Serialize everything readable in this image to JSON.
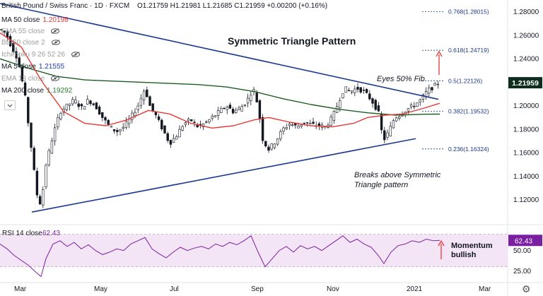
{
  "header": {
    "symbol": "British Pound / Swiss Franc · 1D · FXCM",
    "ohlc": "O1.21759 H1.21981 L1.21685 C1.21959 +0.00200 (+0.16%)"
  },
  "indicators": [
    {
      "label": "MA 50 close",
      "value": "1.20198",
      "color": "#e53935",
      "value_color": "#e53935"
    },
    {
      "label": "EMA 55 close",
      "value": "",
      "color": "#9e9e9e",
      "value_color": "#9e9e9e"
    },
    {
      "label": "BB 50 close 2",
      "value": "",
      "color": "#9e9e9e",
      "value_color": "#9e9e9e"
    },
    {
      "label": "Ichimoku 9 26 52 26",
      "value": "",
      "color": "#9e9e9e",
      "value_color": "#9e9e9e"
    },
    {
      "label": "MA 5 close",
      "value": "1.21555",
      "color": "#131722",
      "value_color": "#1e40af"
    },
    {
      "label": "EMA 13 close",
      "value": "",
      "color": "#9e9e9e",
      "value_color": "#9e9e9e"
    },
    {
      "label": "MA 200 close",
      "value": "1.19292",
      "color": "#131722",
      "value_color": "#2e7d32"
    }
  ],
  "annotations": {
    "title": "Symmetric Triangle Pattern",
    "fib_note": "Eyes 50% Fib",
    "breakout_line1": "Breaks above Symmetric",
    "breakout_line2": "Triangle pattern",
    "momentum_line1": "Momentum",
    "momentum_line2": "bullish"
  },
  "colors": {
    "candle_up": "#26a69a",
    "candle_down": "#ef5350",
    "candle_body": "#131722",
    "trendline": "#1a3a8f",
    "ma50": "#e53935",
    "ma200": "#1b5e20",
    "fib": "#1e3a8a",
    "arrow": "#e53935",
    "rsi_line": "#7b1fa2",
    "rsi_band": "#f3e5f5",
    "last_price_bg": "#0d2d1f"
  },
  "chart_data": {
    "type": "candlestick",
    "symbol": "GBP/CHF",
    "timeframe": "1D",
    "ylim": [
      1.1,
      1.29
    ],
    "y_ticks": [
      1.28,
      1.26,
      1.24,
      1.22,
      1.2,
      1.18,
      1.16,
      1.14,
      1.12
    ],
    "y_tick_labels": [
      "1.28000",
      "1.26000",
      "1.24000",
      "1.22000",
      "1.20000",
      "1.18000",
      "1.16000",
      "1.14000",
      "1.12000"
    ],
    "x_labels": [
      "Mar",
      "May",
      "Jul",
      "Sep",
      "Nov",
      "2021",
      "Mar"
    ],
    "last_price": "1.21959",
    "price_path": [
      [
        0,
        1.265
      ],
      [
        8,
        1.262
      ],
      [
        15,
        1.252
      ],
      [
        25,
        1.24
      ],
      [
        35,
        1.21
      ],
      [
        45,
        1.16
      ],
      [
        52,
        1.125
      ],
      [
        58,
        1.115
      ],
      [
        65,
        1.15
      ],
      [
        75,
        1.175
      ],
      [
        85,
        1.195
      ],
      [
        95,
        1.2
      ],
      [
        105,
        1.205
      ],
      [
        115,
        1.198
      ],
      [
        125,
        1.205
      ],
      [
        135,
        1.2
      ],
      [
        145,
        1.19
      ],
      [
        155,
        1.182
      ],
      [
        165,
        1.178
      ],
      [
        175,
        1.182
      ],
      [
        185,
        1.19
      ],
      [
        195,
        1.2
      ],
      [
        205,
        1.215
      ],
      [
        212,
        1.2
      ],
      [
        220,
        1.192
      ],
      [
        230,
        1.18
      ],
      [
        240,
        1.168
      ],
      [
        250,
        1.175
      ],
      [
        260,
        1.185
      ],
      [
        270,
        1.188
      ],
      [
        280,
        1.182
      ],
      [
        290,
        1.185
      ],
      [
        300,
        1.19
      ],
      [
        310,
        1.195
      ],
      [
        320,
        1.2
      ],
      [
        330,
        1.195
      ],
      [
        340,
        1.198
      ],
      [
        350,
        1.205
      ],
      [
        358,
        1.215
      ],
      [
        365,
        1.2
      ],
      [
        372,
        1.17
      ],
      [
        380,
        1.163
      ],
      [
        390,
        1.17
      ],
      [
        400,
        1.18
      ],
      [
        410,
        1.185
      ],
      [
        420,
        1.182
      ],
      [
        430,
        1.186
      ],
      [
        440,
        1.184
      ],
      [
        450,
        1.183
      ],
      [
        460,
        1.182
      ],
      [
        470,
        1.19
      ],
      [
        480,
        1.205
      ],
      [
        487,
        1.215
      ],
      [
        495,
        1.212
      ],
      [
        505,
        1.215
      ],
      [
        515,
        1.212
      ],
      [
        525,
        1.205
      ],
      [
        535,
        1.195
      ],
      [
        542,
        1.17
      ],
      [
        550,
        1.178
      ],
      [
        558,
        1.19
      ],
      [
        565,
        1.192
      ],
      [
        575,
        1.197
      ],
      [
        585,
        1.2
      ],
      [
        595,
        1.205
      ],
      [
        605,
        1.213
      ],
      [
        615,
        1.217
      ],
      [
        620,
        1.21959
      ]
    ],
    "upper_trendline": [
      [
        0,
        1.287
      ],
      [
        620,
        1.2055
      ]
    ],
    "lower_trendline": [
      [
        45,
        1.1095
      ],
      [
        588,
        1.172
      ]
    ],
    "ma50": [
      [
        0,
        1.262
      ],
      [
        30,
        1.25
      ],
      [
        60,
        1.22
      ],
      [
        90,
        1.195
      ],
      [
        120,
        1.185
      ],
      [
        150,
        1.183
      ],
      [
        180,
        1.188
      ],
      [
        210,
        1.196
      ],
      [
        240,
        1.193
      ],
      [
        270,
        1.185
      ],
      [
        300,
        1.181
      ],
      [
        330,
        1.183
      ],
      [
        360,
        1.188
      ],
      [
        380,
        1.19
      ],
      [
        410,
        1.186
      ],
      [
        440,
        1.183
      ],
      [
        470,
        1.182
      ],
      [
        500,
        1.185
      ],
      [
        520,
        1.19
      ],
      [
        545,
        1.192
      ],
      [
        570,
        1.193
      ],
      [
        600,
        1.198
      ],
      [
        622,
        1.2021
      ]
    ],
    "ma200": [
      [
        0,
        1.24
      ],
      [
        40,
        1.232
      ],
      [
        80,
        1.225
      ],
      [
        120,
        1.222
      ],
      [
        160,
        1.221
      ],
      [
        200,
        1.22
      ],
      [
        240,
        1.219
      ],
      [
        280,
        1.218
      ],
      [
        320,
        1.216
      ],
      [
        360,
        1.212
      ],
      [
        400,
        1.206
      ],
      [
        440,
        1.201
      ],
      [
        480,
        1.197
      ],
      [
        520,
        1.194
      ],
      [
        560,
        1.192
      ],
      [
        600,
        1.1928
      ],
      [
        622,
        1.1929
      ]
    ],
    "fib_levels": [
      {
        "label": "0.768(1.28015)",
        "value": 1.28015
      },
      {
        "label": "0.618(1.24719)",
        "value": 1.24719
      },
      {
        "label": "0.5(1.22126)",
        "value": 1.22126
      },
      {
        "label": "0.382(1.19532)",
        "value": 1.19532
      },
      {
        "label": "0.236(1.16324)",
        "value": 1.16324
      }
    ],
    "rsi": {
      "label": "RSI 14 close",
      "value": "62.43",
      "ylim": [
        15,
        80
      ],
      "band": [
        30,
        70
      ],
      "y_tick_labels": [
        "50.00",
        "25.00"
      ],
      "y_ticks": [
        50,
        25
      ],
      "path": [
        [
          0,
          58
        ],
        [
          10,
          52
        ],
        [
          20,
          44
        ],
        [
          30,
          38
        ],
        [
          40,
          32
        ],
        [
          50,
          24
        ],
        [
          58,
          18
        ],
        [
          65,
          40
        ],
        [
          75,
          58
        ],
        [
          85,
          62
        ],
        [
          95,
          55
        ],
        [
          105,
          60
        ],
        [
          115,
          52
        ],
        [
          125,
          57
        ],
        [
          135,
          50
        ],
        [
          145,
          45
        ],
        [
          155,
          48
        ],
        [
          165,
          52
        ],
        [
          175,
          50
        ],
        [
          185,
          58
        ],
        [
          195,
          62
        ],
        [
          205,
          66
        ],
        [
          215,
          52
        ],
        [
          225,
          46
        ],
        [
          235,
          41
        ],
        [
          245,
          48
        ],
        [
          255,
          54
        ],
        [
          265,
          50
        ],
        [
          275,
          53
        ],
        [
          285,
          55
        ],
        [
          295,
          52
        ],
        [
          305,
          58
        ],
        [
          315,
          55
        ],
        [
          325,
          60
        ],
        [
          335,
          57
        ],
        [
          345,
          62
        ],
        [
          355,
          68
        ],
        [
          365,
          48
        ],
        [
          375,
          30
        ],
        [
          385,
          40
        ],
        [
          395,
          50
        ],
        [
          405,
          55
        ],
        [
          415,
          48
        ],
        [
          425,
          56
        ],
        [
          435,
          52
        ],
        [
          445,
          55
        ],
        [
          455,
          50
        ],
        [
          465,
          56
        ],
        [
          475,
          62
        ],
        [
          485,
          68
        ],
        [
          495,
          60
        ],
        [
          505,
          64
        ],
        [
          515,
          58
        ],
        [
          525,
          54
        ],
        [
          535,
          44
        ],
        [
          543,
          34
        ],
        [
          553,
          48
        ],
        [
          563,
          56
        ],
        [
          573,
          58
        ],
        [
          583,
          62
        ],
        [
          593,
          60
        ],
        [
          603,
          64
        ],
        [
          613,
          62
        ],
        [
          622,
          62.43
        ]
      ]
    }
  }
}
